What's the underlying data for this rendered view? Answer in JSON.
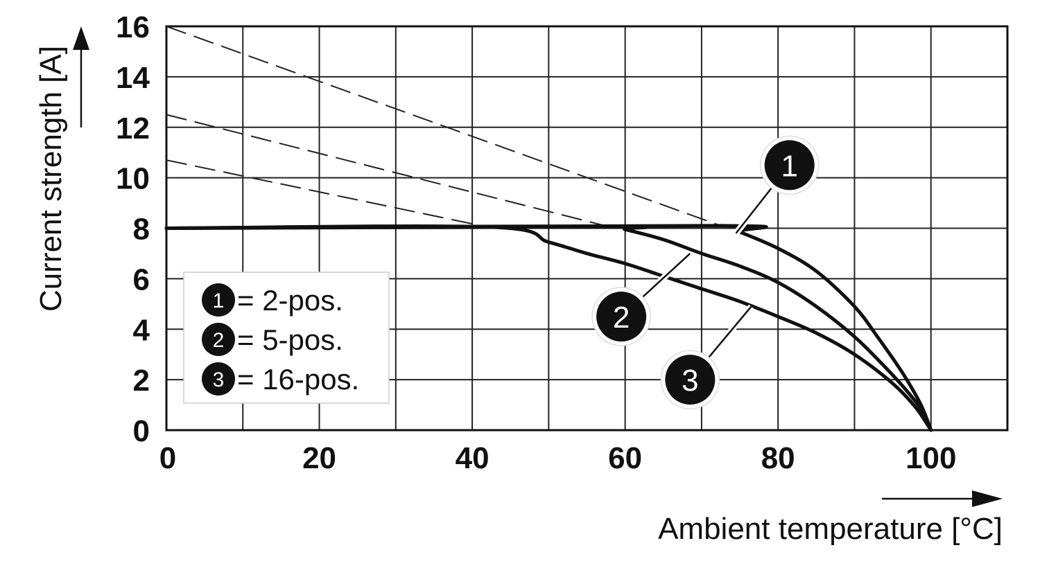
{
  "chart_data": {
    "type": "line",
    "xlabel": "Ambient temperature [°C]",
    "ylabel": "Current strength [A]",
    "xlim": [
      0,
      110
    ],
    "ylim": [
      0,
      16
    ],
    "x_ticks": [
      0,
      20,
      40,
      60,
      80,
      100
    ],
    "y_ticks": [
      0,
      2,
      4,
      6,
      8,
      10,
      12,
      14,
      16
    ],
    "x_grid_step": 10,
    "y_grid_step": 2,
    "grid": true,
    "legend": {
      "placement": "lower-left",
      "entries": [
        {
          "marker": "1",
          "label": "= 2-pos."
        },
        {
          "marker": "2",
          "label": "= 5-pos."
        },
        {
          "marker": "3",
          "label": "= 16-pos."
        }
      ]
    },
    "series": [
      {
        "marker": "1",
        "x": [
          0,
          72.5,
          75,
          80,
          85,
          90,
          93,
          96,
          98,
          99,
          100
        ],
        "y": [
          8,
          8.1,
          7.85,
          7.2,
          6.3,
          4.9,
          3.7,
          2.4,
          1.4,
          0.8,
          0
        ]
      },
      {
        "marker": "2",
        "x": [
          0,
          58,
          60,
          65,
          70,
          75,
          80,
          85,
          90,
          94,
          97,
          99,
          100
        ],
        "y": [
          8,
          8.05,
          7.95,
          7.55,
          7.0,
          6.5,
          5.85,
          4.9,
          3.7,
          2.5,
          1.5,
          0.7,
          0
        ]
      },
      {
        "marker": "3",
        "x": [
          0,
          42,
          50,
          55,
          60,
          65,
          70,
          75,
          80,
          85,
          90,
          95,
          98,
          100
        ],
        "y": [
          8,
          8.05,
          7.45,
          7.0,
          6.6,
          6.1,
          5.6,
          5.1,
          4.5,
          3.85,
          3.0,
          1.85,
          0.9,
          0
        ]
      }
    ],
    "dashed_extensions": [
      {
        "x": [
          0,
          72.5
        ],
        "y": [
          16,
          8.1
        ]
      },
      {
        "x": [
          0,
          58
        ],
        "y": [
          12.5,
          8.05
        ]
      },
      {
        "x": [
          0,
          42
        ],
        "y": [
          10.7,
          8.05
        ]
      }
    ],
    "annotations": [
      {
        "marker": "1",
        "x": 81.5,
        "y": 10.5,
        "points_to": {
          "x": 74.5,
          "y": 7.8
        }
      },
      {
        "marker": "2",
        "x": 59.5,
        "y": 4.5,
        "points_to": {
          "x": 68.5,
          "y": 7.0
        }
      },
      {
        "marker": "3",
        "x": 68.5,
        "y": 2.0,
        "points_to": {
          "x": 76.5,
          "y": 4.9
        }
      }
    ]
  }
}
